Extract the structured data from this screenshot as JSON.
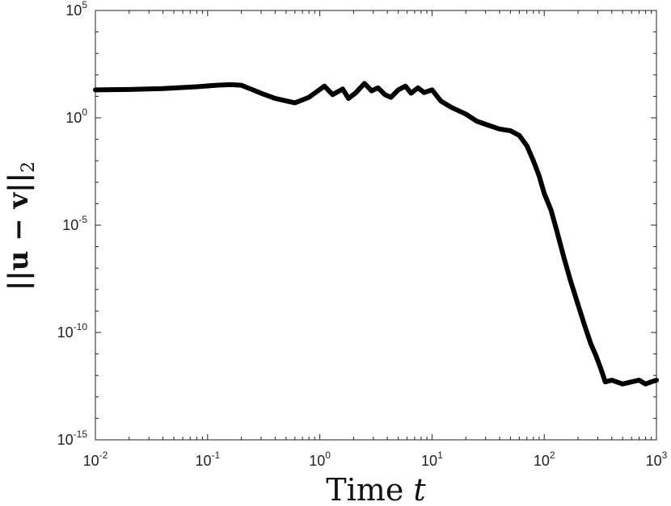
{
  "chart_data": {
    "type": "line",
    "title": "",
    "xlabel": "Time t",
    "ylabel": "||u − v||2",
    "xscale": "log",
    "yscale": "log",
    "xlim": [
      0.01,
      1000
    ],
    "ylim": [
      1e-15,
      100000
    ],
    "grid": false,
    "legend": "none",
    "x_ticks": [
      {
        "base": "10",
        "exp": "-2"
      },
      {
        "base": "10",
        "exp": "-1"
      },
      {
        "base": "10",
        "exp": "0"
      },
      {
        "base": "10",
        "exp": "1"
      },
      {
        "base": "10",
        "exp": "2"
      },
      {
        "base": "10",
        "exp": "3"
      }
    ],
    "y_ticks": [
      {
        "base": "10",
        "exp": "5"
      },
      {
        "base": "10",
        "exp": "0"
      },
      {
        "base": "10",
        "exp": "-5"
      },
      {
        "base": "10",
        "exp": "-10"
      },
      {
        "base": "10",
        "exp": "-15"
      }
    ],
    "line_color": "#000000",
    "series": [
      {
        "x": [
          0.01,
          0.02,
          0.04,
          0.08,
          0.12,
          0.16,
          0.2,
          0.3,
          0.4,
          0.6,
          0.8,
          1.1,
          1.3,
          1.6,
          1.8,
          2.1,
          2.5,
          2.9,
          3.3,
          3.8,
          4.3,
          5.0,
          5.8,
          6.5,
          7.5,
          8.5,
          10,
          12,
          15,
          20,
          25,
          30,
          40,
          50,
          60,
          70,
          80,
          90,
          100,
          115,
          130,
          150,
          170,
          200,
          230,
          260,
          290,
          320,
          350,
          400,
          500,
          600,
          700,
          800,
          900,
          1000
        ],
        "y": [
          20,
          21,
          23,
          28,
          33,
          35,
          33,
          14,
          8,
          5,
          9,
          30,
          12,
          22,
          8,
          15,
          40,
          18,
          25,
          12,
          9,
          20,
          30,
          14,
          25,
          15,
          20,
          6,
          3,
          1.5,
          0.7,
          0.5,
          0.3,
          0.25,
          0.15,
          0.05,
          0.01,
          0.002,
          0.0003,
          5e-05,
          5e-06,
          3e-07,
          3e-08,
          2e-09,
          2e-10,
          3e-11,
          8e-12,
          2e-12,
          5e-13,
          6e-13,
          4e-13,
          5e-13,
          6e-13,
          4e-13,
          5e-13,
          6e-13
        ]
      }
    ]
  }
}
